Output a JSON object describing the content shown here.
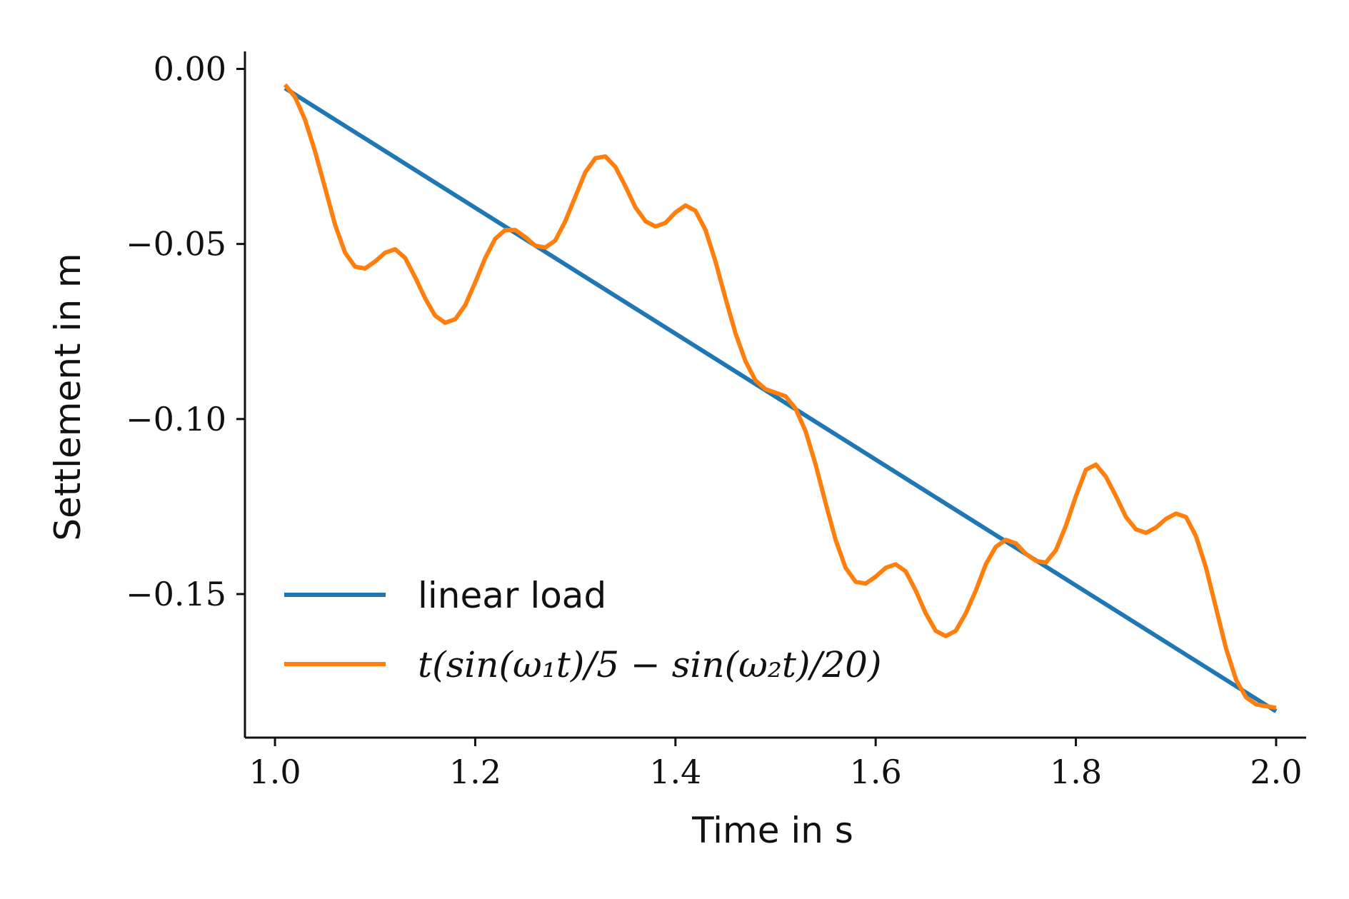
{
  "chart_data": {
    "type": "line",
    "xlabel": "Time in s",
    "ylabel": "Settlement in m",
    "xlim": [
      0.97,
      2.03
    ],
    "ylim": [
      -0.191,
      0.005
    ],
    "xticks": [
      1.0,
      1.2,
      1.4,
      1.6,
      1.8,
      2.0
    ],
    "xtick_labels": [
      "1.0",
      "1.2",
      "1.4",
      "1.6",
      "1.8",
      "2.0"
    ],
    "yticks": [
      0.0,
      -0.05,
      -0.1,
      -0.15
    ],
    "ytick_labels": [
      "0.00",
      "−0.05",
      "−0.10",
      "−0.15"
    ],
    "grid": false,
    "legend_position": "lower-left",
    "series": [
      {
        "name": "linear load",
        "color": "#1f77b4",
        "x": [
          1.01,
          2.0
        ],
        "y": [
          -0.0055,
          -0.1835
        ]
      },
      {
        "name": "t(sin(ω₁t)/5 − sin(ω₂t)/20)",
        "color": "#ff7f0e",
        "x": [
          1.01,
          1.02,
          1.03,
          1.04,
          1.05,
          1.06,
          1.07,
          1.08,
          1.09,
          1.1,
          1.11,
          1.12,
          1.13,
          1.14,
          1.15,
          1.16,
          1.17,
          1.18,
          1.19,
          1.2,
          1.21,
          1.22,
          1.23,
          1.24,
          1.25,
          1.26,
          1.27,
          1.28,
          1.29,
          1.3,
          1.31,
          1.32,
          1.33,
          1.34,
          1.35,
          1.36,
          1.37,
          1.38,
          1.39,
          1.4,
          1.41,
          1.42,
          1.43,
          1.44,
          1.45,
          1.46,
          1.47,
          1.48,
          1.49,
          1.5,
          1.51,
          1.52,
          1.53,
          1.54,
          1.55,
          1.56,
          1.57,
          1.58,
          1.59,
          1.6,
          1.61,
          1.62,
          1.63,
          1.64,
          1.65,
          1.66,
          1.67,
          1.68,
          1.69,
          1.7,
          1.71,
          1.72,
          1.73,
          1.74,
          1.75,
          1.76,
          1.77,
          1.78,
          1.79,
          1.8,
          1.81,
          1.82,
          1.83,
          1.84,
          1.85,
          1.86,
          1.87,
          1.88,
          1.89,
          1.9,
          1.91,
          1.92,
          1.93,
          1.94,
          1.95,
          1.96,
          1.97,
          1.98,
          1.99,
          2.0
        ],
        "y": [
          -0.0045,
          -0.008,
          -0.0145,
          -0.0235,
          -0.034,
          -0.0445,
          -0.0525,
          -0.0565,
          -0.057,
          -0.055,
          -0.0525,
          -0.0515,
          -0.054,
          -0.0595,
          -0.0655,
          -0.0705,
          -0.0725,
          -0.0715,
          -0.0675,
          -0.061,
          -0.054,
          -0.0485,
          -0.046,
          -0.046,
          -0.048,
          -0.0505,
          -0.051,
          -0.049,
          -0.0435,
          -0.0365,
          -0.0295,
          -0.0255,
          -0.025,
          -0.028,
          -0.0335,
          -0.0395,
          -0.0435,
          -0.045,
          -0.044,
          -0.041,
          -0.039,
          -0.0405,
          -0.046,
          -0.055,
          -0.0655,
          -0.0755,
          -0.0835,
          -0.089,
          -0.0915,
          -0.0925,
          -0.0935,
          -0.097,
          -0.1035,
          -0.113,
          -0.124,
          -0.1345,
          -0.1425,
          -0.1465,
          -0.147,
          -0.145,
          -0.1425,
          -0.1415,
          -0.1435,
          -0.149,
          -0.1555,
          -0.1605,
          -0.162,
          -0.1605,
          -0.1555,
          -0.149,
          -0.1415,
          -0.1365,
          -0.1345,
          -0.1355,
          -0.1385,
          -0.1405,
          -0.141,
          -0.1375,
          -0.1305,
          -0.122,
          -0.1145,
          -0.113,
          -0.1165,
          -0.122,
          -0.128,
          -0.1315,
          -0.1325,
          -0.131,
          -0.1285,
          -0.127,
          -0.128,
          -0.1335,
          -0.1425,
          -0.154,
          -0.1655,
          -0.1745,
          -0.1795,
          -0.1815,
          -0.182,
          -0.1825
        ]
      }
    ]
  }
}
